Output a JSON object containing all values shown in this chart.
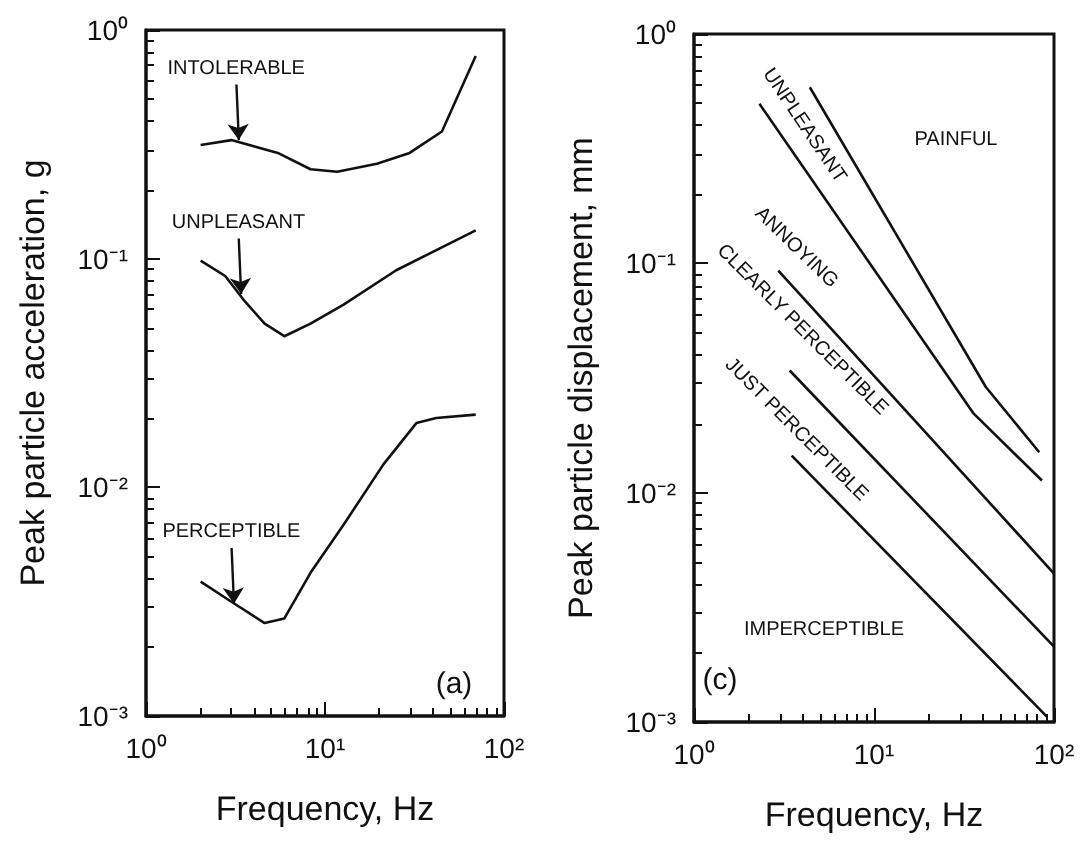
{
  "chart_data": [
    {
      "type": "line",
      "xlabel": "Frequency, Hz",
      "ylabel": "Peak particle acceleration, g",
      "log": "xy",
      "marker": "none",
      "line_style": "solid",
      "xlim": [
        1,
        100
      ],
      "xticks": [
        {
          "value": 1,
          "label": "10⁰"
        },
        {
          "value": 10,
          "label": "10¹"
        },
        {
          "value": 100,
          "label": "10²"
        }
      ],
      "ylim": [
        0.001,
        1
      ],
      "yticks": [
        {
          "value": 0.001,
          "label": "10⁻³"
        },
        {
          "value": 0.01,
          "label": "10⁻²"
        },
        {
          "value": 0.1,
          "label": "10⁻¹"
        },
        {
          "value": 1,
          "label": "10⁰"
        }
      ],
      "series": [
        {
          "color": "#111111",
          "x": [
            2.02,
            3.0,
            5.45,
            8.3,
            11.7,
            19.5,
            29.7,
            45,
            69.5
          ],
          "values": [
            0.314,
            0.33,
            0.29,
            0.246,
            0.24,
            0.26,
            0.29,
            0.36,
            0.77
          ]
        },
        {
          "color": "#111111",
          "x": [
            2.02,
            2.77,
            3.57,
            4.6,
            5.93,
            8.3,
            12.7,
            25,
            69.5
          ],
          "values": [
            0.098,
            0.084,
            0.065,
            0.052,
            0.0458,
            0.052,
            0.063,
            0.089,
            0.133
          ]
        },
        {
          "color": "#111111",
          "x": [
            2.02,
            3.0,
            4.6,
            5.93,
            8.3,
            12.7,
            21.2,
            32.4,
            41.8,
            69.5
          ],
          "values": [
            0.00387,
            0.00316,
            0.00255,
            0.00267,
            0.00423,
            0.00686,
            0.0126,
            0.0191,
            0.0201,
            0.0208
          ]
        }
      ],
      "annotations": [
        {
          "text": "INTOLERABLE",
          "x": 3.3,
          "y": 0.33
        },
        {
          "text": "UNPLEASANT",
          "x": 3.4,
          "y": 0.07
        },
        {
          "text": "PERCEPTIBLE",
          "x": 3.1,
          "y": 0.0031
        },
        "(a)"
      ]
    },
    {
      "type": "line",
      "xlabel": "Frequency, Hz",
      "ylabel": "Peak particle displacement, mm",
      "log": "xy",
      "marker": "none",
      "line_style": "solid",
      "xlim": [
        1,
        100
      ],
      "xticks": [
        {
          "value": 1,
          "label": "10⁰"
        },
        {
          "value": 10,
          "label": "10¹"
        },
        {
          "value": 100,
          "label": "10²"
        }
      ],
      "ylim": [
        0.001,
        1
      ],
      "yticks": [
        {
          "value": 0.001,
          "label": "10⁻³"
        },
        {
          "value": 0.01,
          "label": "10⁻²"
        },
        {
          "value": 0.1,
          "label": "10⁻¹"
        },
        {
          "value": 1,
          "label": "10⁰"
        }
      ],
      "series": [
        {
          "color": "#111111",
          "x": [
            4.4,
            41.8,
            82.8
          ],
          "values": [
            0.586,
            0.0289,
            0.015
          ]
        },
        {
          "color": "#111111",
          "x": [
            2.31,
            35.8,
            85.7
          ],
          "values": [
            0.496,
            0.0221,
            0.0113
          ]
        },
        {
          "color": "#111111",
          "x": [
            2.94,
            100
          ],
          "values": [
            0.093,
            0.00444
          ]
        },
        {
          "color": "#111111",
          "x": [
            3.4,
            100
          ],
          "values": [
            0.0341,
            0.00213
          ]
        },
        {
          "color": "#111111",
          "x": [
            3.49,
            91.8
          ],
          "values": [
            0.0145,
            0.00105
          ]
        }
      ],
      "annotations": [
        "PAINFUL",
        "UNPLEASANT",
        "ANNOYING",
        "CLEARLY PERCEPTIBLE",
        "JUST PERCEPTIBLE",
        "IMPERCEPTIBLE",
        "(c)"
      ]
    }
  ]
}
